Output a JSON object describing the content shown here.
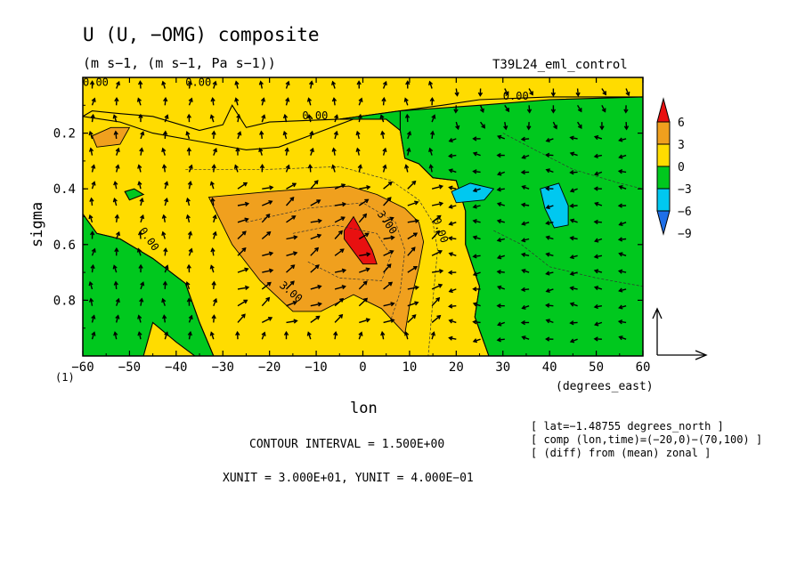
{
  "chart_data": {
    "type": "heatmap",
    "title": "U (U, −OMG) composite",
    "units": "(m s−1, (m s−1, Pa s−1))",
    "experiment": "T39L24_eml_control",
    "xlabel": "lon",
    "x_unit_label": "(degrees_east)",
    "ylabel": "sigma",
    "y_axis_index_label": "(1)",
    "xlim": [
      -60,
      60
    ],
    "ylim": [
      1.0,
      0.0
    ],
    "x_ticks": [
      -60,
      -50,
      -40,
      -30,
      -20,
      -10,
      0,
      10,
      20,
      30,
      40,
      50,
      60
    ],
    "x_tick_labels": [
      "−60",
      "−50",
      "−40",
      "−30",
      "−20",
      "−10",
      "0",
      "10",
      "20",
      "30",
      "40",
      "50",
      "60"
    ],
    "y_ticks": [
      0.2,
      0.4,
      0.6,
      0.8
    ],
    "y_tick_labels": [
      "0.2",
      "0.4",
      "0.6",
      "0.8"
    ],
    "colorbar": {
      "levels": [
        -9,
        -6,
        -3,
        0,
        3,
        6
      ],
      "labels": [
        "6",
        "3",
        "0",
        "−3",
        "−6",
        "−9"
      ],
      "colors": [
        "#1e6fe8",
        "#00c8f0",
        "#00c81e",
        "#ffdc00",
        "#f0a01e",
        "#e81010"
      ]
    },
    "contour_labels": [
      "0.00",
      "0.00",
      "0.00",
      "0.00",
      "0.00",
      "3.00",
      "3.00",
      "0.00"
    ],
    "regions": [
      {
        "value": 7.5,
        "poly": [
          [
            -4,
            0.55
          ],
          [
            -2,
            0.5
          ],
          [
            2,
            0.62
          ],
          [
            3,
            0.67
          ],
          [
            0,
            0.67
          ],
          [
            -4,
            0.58
          ]
        ]
      },
      {
        "value": 4.5,
        "poly": [
          [
            -33,
            0.43
          ],
          [
            -20,
            0.41
          ],
          [
            -12,
            0.4
          ],
          [
            -3,
            0.39
          ],
          [
            3,
            0.42
          ],
          [
            9,
            0.47
          ],
          [
            12,
            0.52
          ],
          [
            13,
            0.59
          ],
          [
            12,
            0.68
          ],
          [
            10,
            0.82
          ],
          [
            9,
            0.92
          ],
          [
            4,
            0.83
          ],
          [
            -2,
            0.78
          ],
          [
            -9,
            0.84
          ],
          [
            -15,
            0.84
          ],
          [
            -22,
            0.73
          ],
          [
            -28,
            0.6
          ]
        ]
      },
      {
        "value": 4.5,
        "poly": [
          [
            -58,
            0.21
          ],
          [
            -54,
            0.18
          ],
          [
            -50,
            0.18
          ],
          [
            -52,
            0.24
          ],
          [
            -57,
            0.25
          ]
        ]
      },
      {
        "value": 1.5,
        "poly": [
          [
            -60,
            0.0
          ],
          [
            60,
            0.0
          ],
          [
            60,
            0.07
          ],
          [
            40,
            0.07
          ],
          [
            25,
            0.08
          ],
          [
            17,
            0.1
          ],
          [
            8,
            0.12
          ],
          [
            -5,
            0.15
          ],
          [
            -20,
            0.16
          ],
          [
            -25,
            0.18
          ],
          [
            -28,
            0.1
          ],
          [
            -30,
            0.17
          ],
          [
            -35,
            0.19
          ],
          [
            -45,
            0.14
          ],
          [
            -52,
            0.13
          ],
          [
            -58,
            0.12
          ],
          [
            -60,
            0.14
          ]
        ]
      },
      {
        "value": 1.5,
        "poly": [
          [
            -60,
            0.14
          ],
          [
            -52,
            0.16
          ],
          [
            -45,
            0.2
          ],
          [
            -35,
            0.23
          ],
          [
            -25,
            0.26
          ],
          [
            -18,
            0.25
          ],
          [
            -10,
            0.2
          ],
          [
            -2,
            0.15
          ],
          [
            5,
            0.15
          ],
          [
            8,
            0.19
          ],
          [
            9,
            0.29
          ],
          [
            12,
            0.31
          ],
          [
            15,
            0.36
          ],
          [
            20,
            0.37
          ],
          [
            22,
            0.48
          ],
          [
            22,
            0.6
          ],
          [
            25,
            0.75
          ],
          [
            24,
            0.86
          ],
          [
            27,
            1.0
          ],
          [
            -32,
            1.0
          ],
          [
            -35,
            0.88
          ],
          [
            -38,
            0.74
          ],
          [
            -45,
            0.65
          ],
          [
            -52,
            0.58
          ],
          [
            -57,
            0.56
          ],
          [
            -60,
            0.49
          ]
        ]
      },
      {
        "value": -1.5,
        "poly": [
          [
            -60,
            0.49
          ],
          [
            -57,
            0.56
          ],
          [
            -52,
            0.58
          ],
          [
            -45,
            0.65
          ],
          [
            -38,
            0.74
          ],
          [
            -35,
            0.88
          ],
          [
            -32,
            1.0
          ],
          [
            -60,
            1.0
          ]
        ]
      },
      {
        "value": -1.5,
        "poly": [
          [
            8,
            0.12
          ],
          [
            25,
            0.1
          ],
          [
            40,
            0.08
          ],
          [
            60,
            0.07
          ],
          [
            60,
            1.0
          ],
          [
            27,
            1.0
          ],
          [
            24,
            0.86
          ],
          [
            25,
            0.75
          ],
          [
            22,
            0.6
          ],
          [
            22,
            0.48
          ],
          [
            20,
            0.37
          ],
          [
            15,
            0.36
          ],
          [
            12,
            0.31
          ],
          [
            9,
            0.29
          ],
          [
            8,
            0.19
          ]
        ]
      },
      {
        "value": -1.5,
        "poly": [
          [
            -5,
            0.15
          ],
          [
            8,
            0.12
          ],
          [
            8,
            0.19
          ],
          [
            5,
            0.15
          ],
          [
            -2,
            0.15
          ]
        ]
      },
      {
        "value": -1.5,
        "poly": [
          [
            -51,
            0.41
          ],
          [
            -49,
            0.4
          ],
          [
            -47,
            0.42
          ],
          [
            -50,
            0.44
          ]
        ]
      },
      {
        "value": -4.5,
        "poly": [
          [
            19,
            0.41
          ],
          [
            23,
            0.38
          ],
          [
            28,
            0.4
          ],
          [
            26,
            0.44
          ],
          [
            20,
            0.45
          ]
        ]
      },
      {
        "value": -4.5,
        "poly": [
          [
            38,
            0.4
          ],
          [
            42,
            0.38
          ],
          [
            44,
            0.46
          ],
          [
            44,
            0.53
          ],
          [
            41,
            0.54
          ],
          [
            39,
            0.47
          ]
        ]
      },
      {
        "value": 1.5,
        "poly": [
          [
            -45,
            0.88
          ],
          [
            -40,
            0.95
          ],
          [
            -36,
            1.0
          ],
          [
            -47,
            1.0
          ]
        ]
      }
    ]
  },
  "footer": {
    "contour_interval": "CONTOUR INTERVAL = 1.500E+00",
    "unit_scale": "XUNIT = 3.000E+01, YUNIT = 4.000E−01",
    "info": [
      "[ lat=−1.48755 degrees_north ]",
      "[ comp (lon,time)=(−20,0)−(70,100) ]",
      "[ (diff) from (mean) zonal ]"
    ]
  }
}
